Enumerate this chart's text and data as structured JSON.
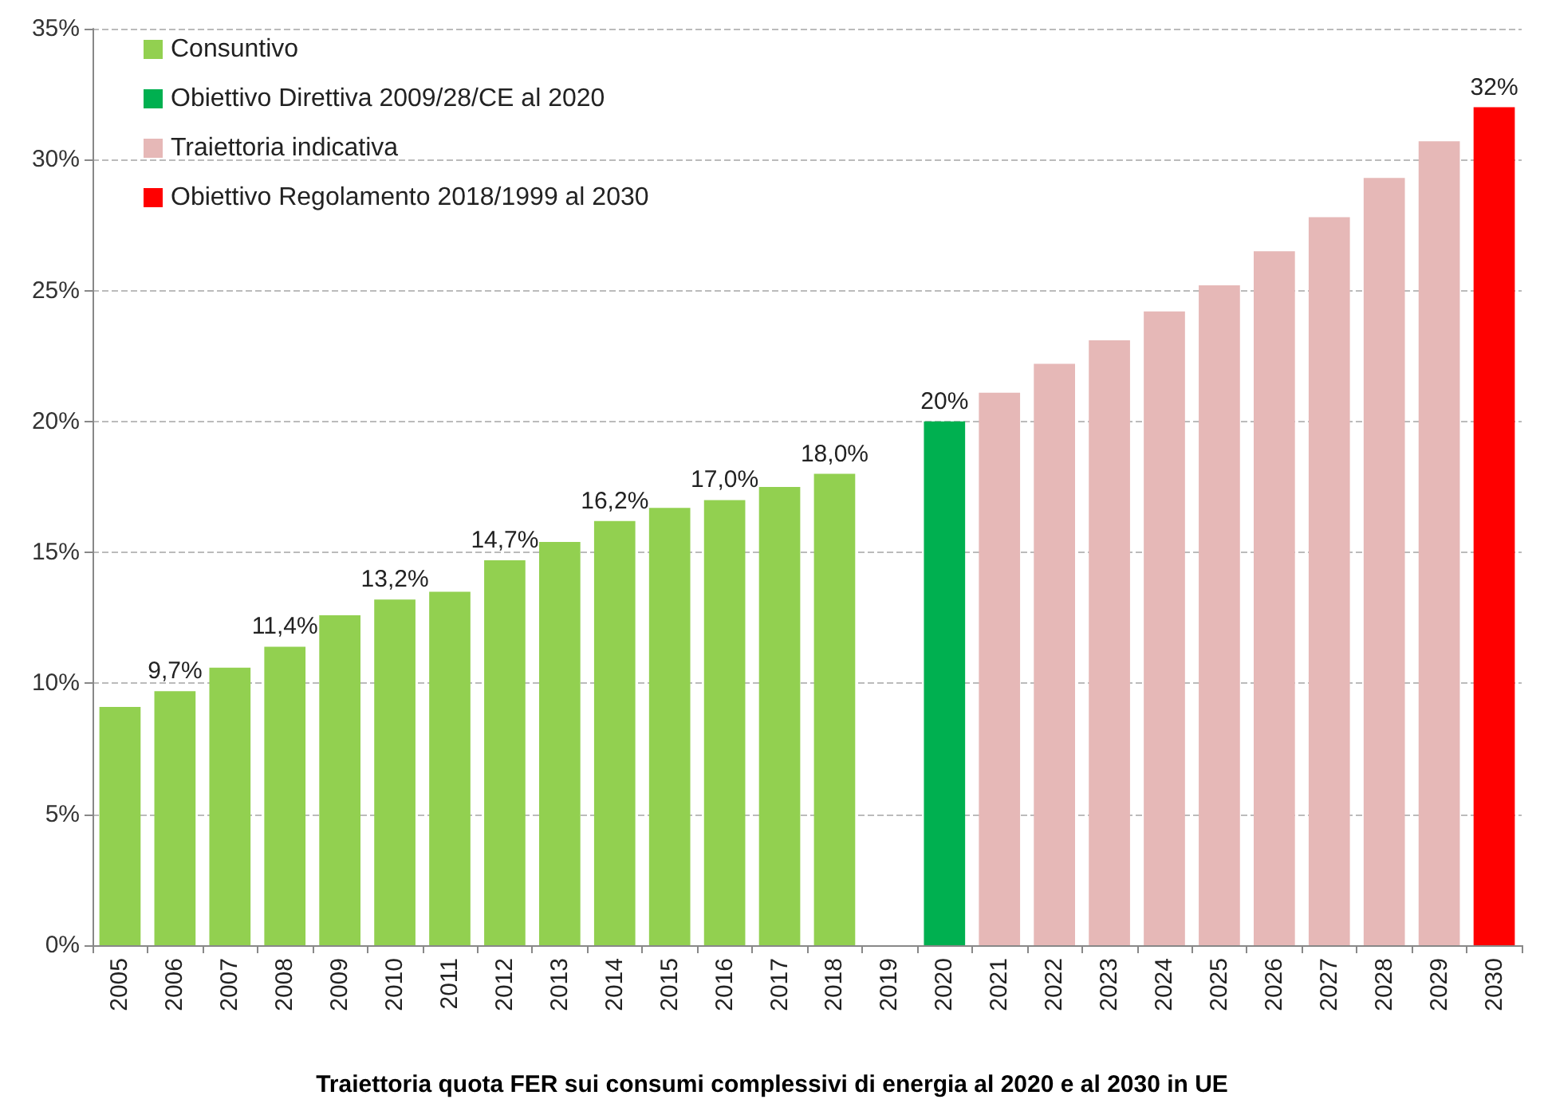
{
  "chart_data": {
    "type": "bar",
    "title": "Traiettoria quota FER sui consumi complessivi di energia al 2020 e al 2030 in UE",
    "categories": [
      "2005",
      "2006",
      "2007",
      "2008",
      "2009",
      "2010",
      "2011",
      "2012",
      "2013",
      "2014",
      "2015",
      "2016",
      "2017",
      "2018",
      "2019",
      "2020",
      "2021",
      "2022",
      "2023",
      "2024",
      "2025",
      "2026",
      "2027",
      "2028",
      "2029",
      "2030"
    ],
    "series": [
      {
        "name": "Consuntivo",
        "color": "#92d050",
        "values": [
          9.1,
          9.7,
          10.6,
          11.4,
          12.6,
          13.2,
          13.5,
          14.7,
          15.4,
          16.2,
          16.7,
          17.0,
          17.5,
          18.0,
          null,
          null,
          null,
          null,
          null,
          null,
          null,
          null,
          null,
          null,
          null,
          null
        ],
        "value_labels": [
          null,
          "9,7%",
          null,
          "11,4%",
          null,
          "13,2%",
          null,
          "14,7%",
          null,
          "16,2%",
          null,
          "17,0%",
          null,
          "18,0%",
          null,
          null,
          null,
          null,
          null,
          null,
          null,
          null,
          null,
          null,
          null,
          null
        ]
      },
      {
        "name": "Obiettivo Direttiva 2009/28/CE al 2020",
        "color": "#00b050",
        "values": [
          null,
          null,
          null,
          null,
          null,
          null,
          null,
          null,
          null,
          null,
          null,
          null,
          null,
          null,
          null,
          20,
          null,
          null,
          null,
          null,
          null,
          null,
          null,
          null,
          null,
          null
        ],
        "value_labels": [
          null,
          null,
          null,
          null,
          null,
          null,
          null,
          null,
          null,
          null,
          null,
          null,
          null,
          null,
          null,
          "20%",
          null,
          null,
          null,
          null,
          null,
          null,
          null,
          null,
          null,
          null
        ]
      },
      {
        "name": "Traiettoria indicativa",
        "color": "#e6b8b7",
        "values": [
          null,
          null,
          null,
          null,
          null,
          null,
          null,
          null,
          null,
          null,
          null,
          null,
          null,
          null,
          null,
          null,
          21.1,
          22.2,
          23.1,
          24.2,
          25.2,
          26.5,
          27.8,
          29.3,
          30.7,
          null
        ]
      },
      {
        "name": "Obiettivo Regolamento 2018/1999 al 2030",
        "color": "#ff0000",
        "values": [
          null,
          null,
          null,
          null,
          null,
          null,
          null,
          null,
          null,
          null,
          null,
          null,
          null,
          null,
          null,
          null,
          null,
          null,
          null,
          null,
          null,
          null,
          null,
          null,
          null,
          32
        ],
        "value_labels": [
          null,
          null,
          null,
          null,
          null,
          null,
          null,
          null,
          null,
          null,
          null,
          null,
          null,
          null,
          null,
          null,
          null,
          null,
          null,
          null,
          null,
          null,
          null,
          null,
          null,
          "32%"
        ]
      }
    ],
    "ylim": [
      0,
      35
    ],
    "yticks": [
      {
        "value": 0,
        "label": "0%"
      },
      {
        "value": 5,
        "label": "5%"
      },
      {
        "value": 10,
        "label": "10%"
      },
      {
        "value": 15,
        "label": "15%"
      },
      {
        "value": 20,
        "label": "20%"
      },
      {
        "value": 25,
        "label": "25%"
      },
      {
        "value": 30,
        "label": "30%"
      },
      {
        "value": 35,
        "label": "35%"
      }
    ],
    "grid": "y",
    "legend": "top left"
  }
}
